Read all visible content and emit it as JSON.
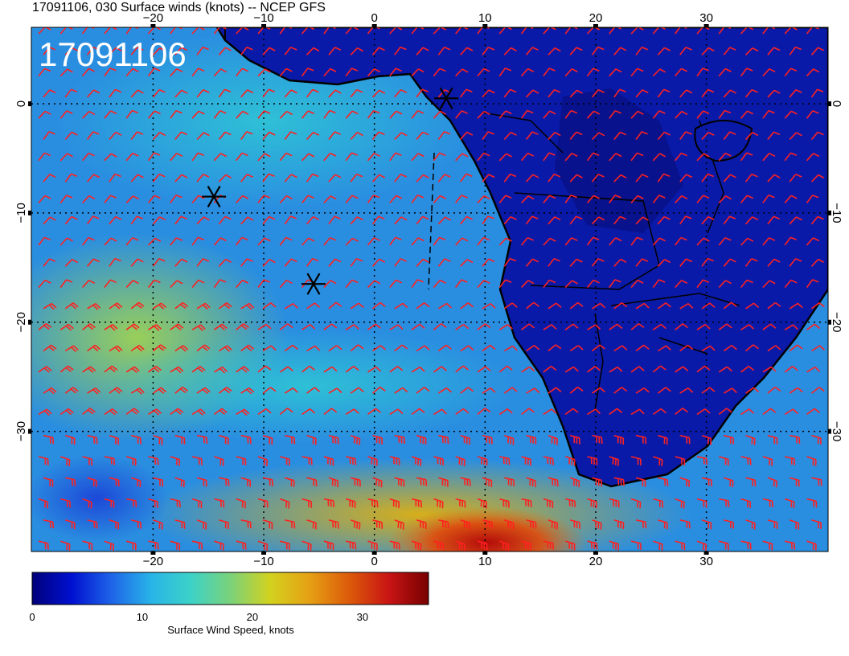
{
  "figure": {
    "title": "17091106, 030 Surface winds (knots) -- NCEP GFS",
    "stamp": "17091106"
  },
  "map": {
    "lon_range": [
      -31,
      41
    ],
    "lat_range": [
      7,
      -41
    ],
    "lon_ticks": [
      -20,
      -10,
      0,
      10,
      20,
      30
    ],
    "lat_ticks": [
      0,
      -10,
      -20,
      -30
    ],
    "lon_tick_labels": [
      "−20",
      "−10",
      "0",
      "10",
      "20",
      "30"
    ],
    "lat_tick_labels": [
      "0",
      "−10",
      "−20",
      "−30"
    ],
    "markers": [
      {
        "name": "asterisk-1",
        "lon": 6.5,
        "lat": 0.5
      },
      {
        "name": "asterisk-2",
        "lon": -14.5,
        "lat": -8.5
      },
      {
        "name": "asterisk-3",
        "lon": -5.5,
        "lat": -16.5
      }
    ],
    "barb_color": "#ff2020"
  },
  "colorbar": {
    "label": "Surface Wind Speed, knots",
    "range": [
      0,
      36
    ],
    "ticks": [
      0,
      10,
      20,
      30
    ],
    "tick_labels": [
      "0",
      "10",
      "20",
      "30"
    ],
    "colors": [
      "#00007a",
      "#0010d0",
      "#1e64e8",
      "#28b4e8",
      "#3cd2c8",
      "#7ad27a",
      "#d2d21e",
      "#e6a014",
      "#dc5a0a",
      "#c81414",
      "#780000"
    ]
  },
  "chart_data": {
    "type": "heatmap",
    "title": "17091106, 030 Surface winds (knots) -- NCEP GFS",
    "xlabel": "",
    "ylabel": "",
    "colorbar_label": "Surface Wind Speed, knots",
    "xlim": [
      -31,
      41
    ],
    "ylim": [
      -41,
      7
    ],
    "x_ticks": [
      -20,
      -10,
      0,
      10,
      20,
      30
    ],
    "y_ticks": [
      0,
      -10,
      -20,
      -30
    ],
    "value_range": [
      0,
      36
    ]
  }
}
